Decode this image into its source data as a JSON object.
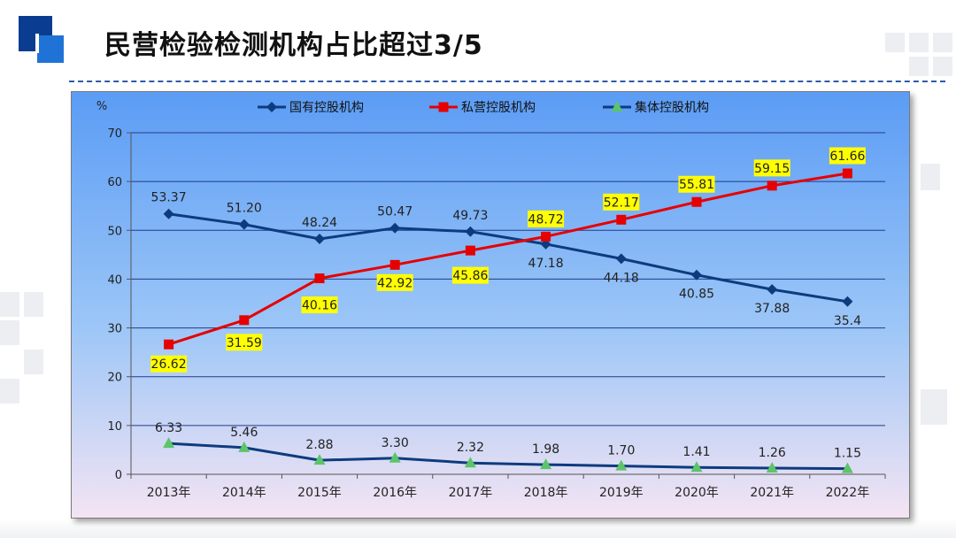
{
  "slide": {
    "title": "民营检验检测机构占比超过3/5"
  },
  "colors": {
    "accent_dark": "#0a3d91",
    "accent_light": "#1f73d6",
    "state_owned": "#0d3b7e",
    "private": "#e60000",
    "collective_marker": "#5cc46a",
    "label_highlight": "#ffff00"
  },
  "chart_data": {
    "type": "line",
    "ylabel": "%",
    "ylim": [
      0,
      70
    ],
    "yticks": [
      0,
      10,
      20,
      30,
      40,
      50,
      60,
      70
    ],
    "grid": true,
    "legend_position": "top",
    "categories": [
      "2013年",
      "2014年",
      "2015年",
      "2016年",
      "2017年",
      "2018年",
      "2019年",
      "2020年",
      "2021年",
      "2022年"
    ],
    "series": [
      {
        "name": "国有控股机构",
        "marker": "diamond",
        "values": [
          53.37,
          51.2,
          48.24,
          50.47,
          49.73,
          47.18,
          44.18,
          40.85,
          37.88,
          35.4
        ],
        "labels": [
          "53.37",
          "51.20",
          "48.24",
          "50.47",
          "49.73",
          "47.18",
          "44.18",
          "40.85",
          "37.88",
          "35.4"
        ]
      },
      {
        "name": "私营控股机构",
        "marker": "square",
        "values": [
          26.62,
          31.59,
          40.16,
          42.92,
          45.86,
          48.72,
          52.17,
          55.81,
          59.15,
          61.66
        ],
        "labels": [
          "26.62",
          "31.59",
          "40.16",
          "42.92",
          "45.86",
          "48.72",
          "52.17",
          "55.81",
          "59.15",
          "61.66"
        ]
      },
      {
        "name": "集体控股机构",
        "marker": "triangle",
        "values": [
          6.33,
          5.46,
          2.88,
          3.3,
          2.32,
          1.98,
          1.7,
          1.41,
          1.26,
          1.15
        ],
        "labels": [
          "6.33",
          "5.46",
          "2.88",
          "3.30",
          "2.32",
          "1.98",
          "1.70",
          "1.41",
          "1.26",
          "1.15"
        ]
      }
    ]
  }
}
